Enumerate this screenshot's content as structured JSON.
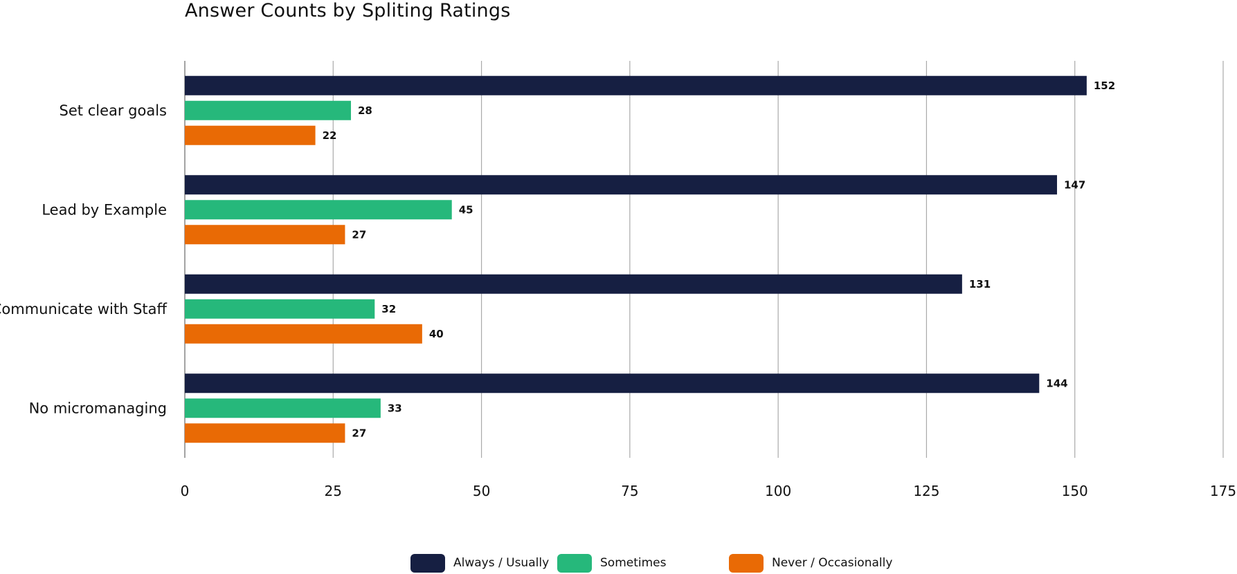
{
  "chart_data": {
    "type": "bar",
    "orientation": "horizontal",
    "title": "Answer Counts by Spliting Ratings",
    "xlabel": "",
    "ylabel": "",
    "categories": [
      "Set clear goals",
      "Lead by Example",
      "Communicate with Staff",
      "No micromanaging"
    ],
    "series": [
      {
        "name": "Always / Usually",
        "values": [
          152,
          147,
          131,
          144
        ],
        "color": "#161f42"
      },
      {
        "name": "Sometimes",
        "values": [
          28,
          45,
          32,
          33
        ],
        "color": "#26b87b"
      },
      {
        "name": "Never / Occasionally",
        "values": [
          22,
          27,
          40,
          27
        ],
        "color": "#e96a05"
      }
    ],
    "xlim": [
      0,
      175
    ],
    "xticks": [
      0,
      25,
      50,
      75,
      100,
      125,
      150,
      175
    ],
    "grid": true,
    "legend_position": "bottom-center",
    "data_labels": true
  }
}
